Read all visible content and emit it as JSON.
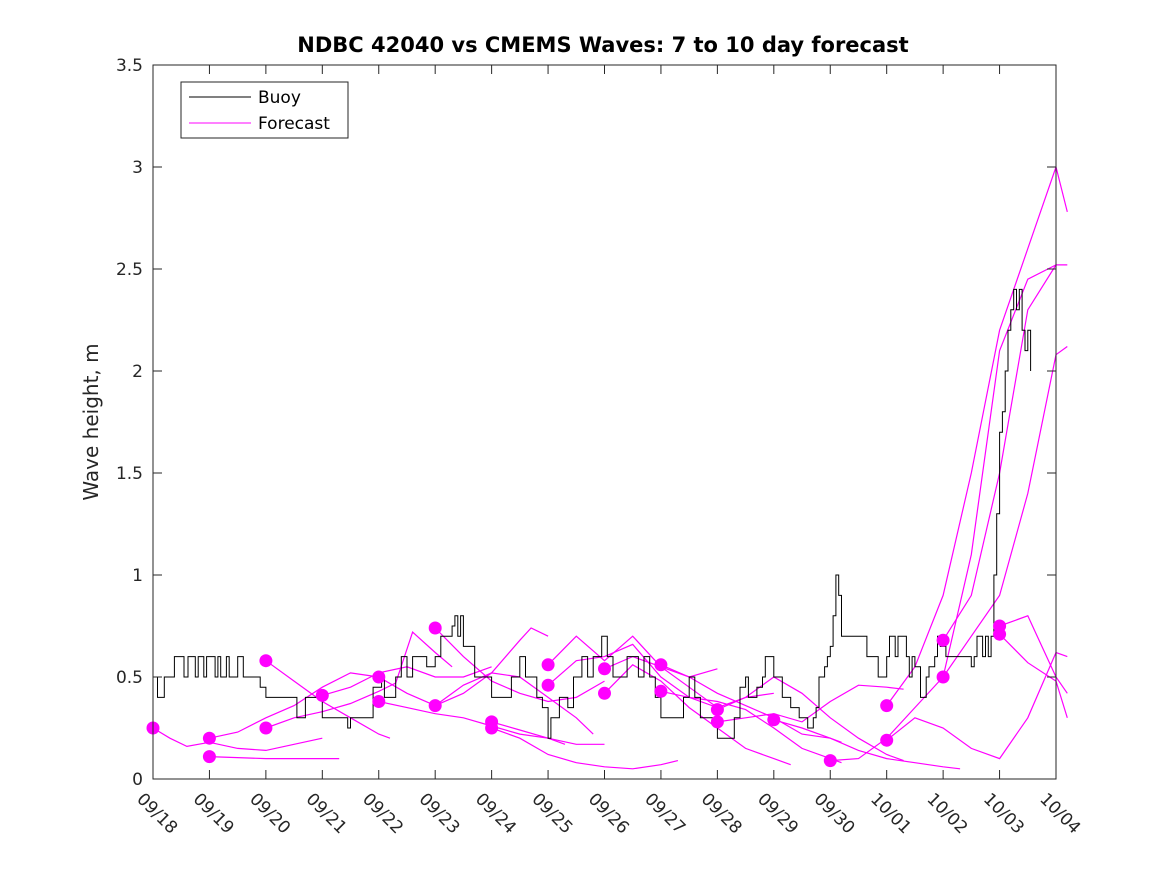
{
  "chart_data": {
    "type": "line",
    "title": "NDBC 42040 vs CMEMS Waves: 7 to 10 day forecast",
    "xlabel": "",
    "ylabel": "Wave height, m",
    "x_unit": "days since 09/18",
    "xlim": [
      0,
      16
    ],
    "ylim": [
      0,
      3.5
    ],
    "y_ticks": [
      0,
      0.5,
      1,
      1.5,
      2,
      2.5,
      3,
      3.5
    ],
    "y_tick_labels": [
      "0",
      "0.5",
      "1",
      "1.5",
      "2",
      "2.5",
      "3",
      "3.5"
    ],
    "x_ticks": [
      0,
      1,
      2,
      3,
      4,
      5,
      6,
      7,
      8,
      9,
      10,
      11,
      12,
      13,
      14,
      15,
      16
    ],
    "x_tick_labels": [
      "09/18",
      "09/19",
      "09/20",
      "09/21",
      "09/22",
      "09/23",
      "09/24",
      "09/25",
      "09/26",
      "09/27",
      "09/28",
      "09/29",
      "09/30",
      "10/01",
      "10/02",
      "10/03",
      "10/04"
    ],
    "grid": false,
    "legend": {
      "position": "top-left",
      "entries": [
        {
          "label": "Buoy",
          "color": "#000000"
        },
        {
          "label": "Forecast",
          "color": "#ff00ff"
        }
      ]
    },
    "colors": {
      "buoy": "#000000",
      "forecast": "#ff00ff",
      "axis": "#262626"
    },
    "buoy": [
      [
        0.0,
        0.5
      ],
      [
        0.08,
        0.4
      ],
      [
        0.2,
        0.5
      ],
      [
        0.3,
        0.5
      ],
      [
        0.38,
        0.6
      ],
      [
        0.5,
        0.6
      ],
      [
        0.55,
        0.5
      ],
      [
        0.62,
        0.6
      ],
      [
        0.75,
        0.5
      ],
      [
        0.8,
        0.6
      ],
      [
        0.9,
        0.5
      ],
      [
        0.95,
        0.6
      ],
      [
        1.05,
        0.6
      ],
      [
        1.1,
        0.5
      ],
      [
        1.15,
        0.6
      ],
      [
        1.2,
        0.5
      ],
      [
        1.3,
        0.6
      ],
      [
        1.35,
        0.5
      ],
      [
        1.5,
        0.6
      ],
      [
        1.6,
        0.5
      ],
      [
        1.85,
        0.5
      ],
      [
        1.9,
        0.45
      ],
      [
        2.0,
        0.4
      ],
      [
        2.3,
        0.4
      ],
      [
        2.55,
        0.3
      ],
      [
        2.7,
        0.4
      ],
      [
        3.0,
        0.3
      ],
      [
        3.35,
        0.3
      ],
      [
        3.45,
        0.25
      ],
      [
        3.5,
        0.3
      ],
      [
        3.8,
        0.3
      ],
      [
        3.9,
        0.45
      ],
      [
        4.05,
        0.5
      ],
      [
        4.1,
        0.4
      ],
      [
        4.3,
        0.5
      ],
      [
        4.4,
        0.6
      ],
      [
        4.5,
        0.5
      ],
      [
        4.6,
        0.6
      ],
      [
        4.75,
        0.6
      ],
      [
        4.85,
        0.55
      ],
      [
        5.0,
        0.6
      ],
      [
        5.1,
        0.7
      ],
      [
        5.2,
        0.7
      ],
      [
        5.3,
        0.75
      ],
      [
        5.35,
        0.8
      ],
      [
        5.4,
        0.7
      ],
      [
        5.45,
        0.8
      ],
      [
        5.5,
        0.65
      ],
      [
        5.7,
        0.5
      ],
      [
        5.85,
        0.5
      ],
      [
        6.0,
        0.4
      ],
      [
        6.2,
        0.4
      ],
      [
        6.35,
        0.5
      ],
      [
        6.5,
        0.6
      ],
      [
        6.6,
        0.5
      ],
      [
        6.8,
        0.4
      ],
      [
        6.9,
        0.35
      ],
      [
        7.0,
        0.2
      ],
      [
        7.05,
        0.3
      ],
      [
        7.2,
        0.4
      ],
      [
        7.35,
        0.35
      ],
      [
        7.45,
        0.5
      ],
      [
        7.6,
        0.6
      ],
      [
        7.7,
        0.5
      ],
      [
        7.8,
        0.6
      ],
      [
        7.95,
        0.7
      ],
      [
        8.05,
        0.6
      ],
      [
        8.15,
        0.5
      ],
      [
        8.3,
        0.5
      ],
      [
        8.4,
        0.6
      ],
      [
        8.5,
        0.6
      ],
      [
        8.6,
        0.5
      ],
      [
        8.7,
        0.6
      ],
      [
        8.8,
        0.5
      ],
      [
        8.9,
        0.4
      ],
      [
        9.0,
        0.3
      ],
      [
        9.2,
        0.3
      ],
      [
        9.4,
        0.4
      ],
      [
        9.5,
        0.5
      ],
      [
        9.6,
        0.4
      ],
      [
        9.7,
        0.3
      ],
      [
        9.85,
        0.3
      ],
      [
        10.0,
        0.2
      ],
      [
        10.15,
        0.2
      ],
      [
        10.3,
        0.3
      ],
      [
        10.4,
        0.45
      ],
      [
        10.5,
        0.5
      ],
      [
        10.55,
        0.4
      ],
      [
        10.7,
        0.45
      ],
      [
        10.8,
        0.5
      ],
      [
        10.85,
        0.6
      ],
      [
        11.0,
        0.5
      ],
      [
        11.15,
        0.4
      ],
      [
        11.3,
        0.35
      ],
      [
        11.45,
        0.3
      ],
      [
        11.6,
        0.25
      ],
      [
        11.7,
        0.3
      ],
      [
        11.75,
        0.35
      ],
      [
        11.8,
        0.5
      ],
      [
        11.9,
        0.55
      ],
      [
        11.95,
        0.6
      ],
      [
        12.0,
        0.65
      ],
      [
        12.05,
        0.8
      ],
      [
        12.1,
        1.0
      ],
      [
        12.15,
        0.9
      ],
      [
        12.2,
        0.7
      ],
      [
        12.3,
        0.7
      ],
      [
        12.5,
        0.7
      ],
      [
        12.65,
        0.6
      ],
      [
        12.75,
        0.6
      ],
      [
        12.85,
        0.5
      ],
      [
        12.95,
        0.5
      ],
      [
        13.0,
        0.6
      ],
      [
        13.05,
        0.7
      ],
      [
        13.15,
        0.6
      ],
      [
        13.2,
        0.7
      ],
      [
        13.3,
        0.7
      ],
      [
        13.35,
        0.6
      ],
      [
        13.4,
        0.5
      ],
      [
        13.45,
        0.6
      ],
      [
        13.5,
        0.55
      ],
      [
        13.6,
        0.4
      ],
      [
        13.7,
        0.5
      ],
      [
        13.75,
        0.55
      ],
      [
        13.85,
        0.6
      ],
      [
        13.9,
        0.7
      ],
      [
        13.95,
        0.65
      ],
      [
        14.05,
        0.6
      ],
      [
        14.2,
        0.6
      ],
      [
        14.3,
        0.6
      ],
      [
        14.4,
        0.6
      ],
      [
        14.5,
        0.55
      ],
      [
        14.55,
        0.6
      ],
      [
        14.6,
        0.7
      ],
      [
        14.65,
        0.7
      ],
      [
        14.7,
        0.6
      ],
      [
        14.75,
        0.7
      ],
      [
        14.8,
        0.6
      ],
      [
        14.85,
        0.7
      ],
      [
        14.9,
        1.0
      ],
      [
        14.95,
        1.3
      ],
      [
        15.0,
        1.7
      ],
      [
        15.05,
        1.8
      ],
      [
        15.1,
        2.0
      ],
      [
        15.15,
        2.2
      ],
      [
        15.2,
        2.3
      ],
      [
        15.25,
        2.4
      ],
      [
        15.3,
        2.3
      ],
      [
        15.35,
        2.4
      ],
      [
        15.4,
        2.2
      ],
      [
        15.45,
        2.1
      ],
      [
        15.5,
        2.2
      ],
      [
        15.55,
        2.0
      ]
    ],
    "forecast_series": [
      [
        [
          0.0,
          0.25
        ],
        [
          0.3,
          0.2
        ],
        [
          0.6,
          0.16
        ],
        [
          1.0,
          0.18
        ],
        [
          1.5,
          0.15
        ],
        [
          2.0,
          0.14
        ],
        [
          2.5,
          0.17
        ],
        [
          3.0,
          0.2
        ]
      ],
      [
        [
          1.0,
          0.2
        ],
        [
          1.5,
          0.23
        ],
        [
          2.0,
          0.3
        ],
        [
          2.5,
          0.36
        ],
        [
          3.0,
          0.45
        ],
        [
          3.5,
          0.52
        ],
        [
          4.0,
          0.5
        ]
      ],
      [
        [
          1.0,
          0.11
        ],
        [
          2.0,
          0.1
        ],
        [
          3.0,
          0.1
        ],
        [
          3.3,
          0.1
        ]
      ],
      [
        [
          2.0,
          0.58
        ],
        [
          2.5,
          0.48
        ],
        [
          3.0,
          0.38
        ],
        [
          3.5,
          0.3
        ],
        [
          4.0,
          0.22
        ],
        [
          4.2,
          0.2
        ]
      ],
      [
        [
          2.0,
          0.25
        ],
        [
          2.5,
          0.3
        ],
        [
          3.0,
          0.33
        ],
        [
          3.5,
          0.37
        ],
        [
          4.0,
          0.43
        ],
        [
          4.3,
          0.47
        ],
        [
          4.6,
          0.72
        ],
        [
          5.0,
          0.62
        ],
        [
          5.3,
          0.55
        ]
      ],
      [
        [
          3.0,
          0.41
        ],
        [
          3.5,
          0.45
        ],
        [
          4.0,
          0.52
        ],
        [
          4.5,
          0.55
        ],
        [
          5.0,
          0.5
        ],
        [
          5.5,
          0.5
        ],
        [
          6.0,
          0.55
        ]
      ],
      [
        [
          4.0,
          0.5
        ],
        [
          4.5,
          0.42
        ],
        [
          5.0,
          0.36
        ],
        [
          5.5,
          0.42
        ],
        [
          6.0,
          0.52
        ],
        [
          6.5,
          0.68
        ],
        [
          6.7,
          0.74
        ],
        [
          7.0,
          0.7
        ]
      ],
      [
        [
          4.0,
          0.38
        ],
        [
          4.5,
          0.35
        ],
        [
          5.0,
          0.32
        ],
        [
          5.5,
          0.3
        ],
        [
          6.0,
          0.26
        ],
        [
          6.5,
          0.22
        ],
        [
          7.0,
          0.2
        ],
        [
          7.3,
          0.17
        ]
      ],
      [
        [
          5.0,
          0.74
        ],
        [
          5.5,
          0.6
        ],
        [
          6.0,
          0.48
        ],
        [
          6.5,
          0.42
        ],
        [
          7.0,
          0.38
        ],
        [
          7.5,
          0.4
        ],
        [
          8.0,
          0.48
        ]
      ],
      [
        [
          5.0,
          0.36
        ],
        [
          5.5,
          0.46
        ],
        [
          6.0,
          0.52
        ],
        [
          6.5,
          0.5
        ],
        [
          7.0,
          0.4
        ],
        [
          7.5,
          0.3
        ],
        [
          7.8,
          0.22
        ]
      ],
      [
        [
          6.0,
          0.28
        ],
        [
          6.5,
          0.24
        ],
        [
          7.0,
          0.2
        ],
        [
          7.5,
          0.17
        ],
        [
          8.0,
          0.17
        ]
      ],
      [
        [
          6.0,
          0.25
        ],
        [
          6.5,
          0.2
        ],
        [
          7.0,
          0.12
        ],
        [
          7.5,
          0.08
        ],
        [
          8.0,
          0.06
        ],
        [
          8.5,
          0.05
        ],
        [
          9.0,
          0.07
        ],
        [
          9.3,
          0.09
        ]
      ],
      [
        [
          7.0,
          0.56
        ],
        [
          7.5,
          0.7
        ],
        [
          8.0,
          0.58
        ],
        [
          8.5,
          0.7
        ],
        [
          9.0,
          0.55
        ],
        [
          9.5,
          0.5
        ],
        [
          10.0,
          0.54
        ]
      ],
      [
        [
          7.0,
          0.46
        ],
        [
          7.5,
          0.58
        ],
        [
          8.0,
          0.6
        ],
        [
          8.5,
          0.66
        ],
        [
          9.0,
          0.5
        ],
        [
          9.5,
          0.4
        ],
        [
          10.0,
          0.35
        ]
      ],
      [
        [
          8.0,
          0.54
        ],
        [
          8.5,
          0.6
        ],
        [
          9.0,
          0.55
        ],
        [
          9.5,
          0.45
        ],
        [
          10.0,
          0.35
        ],
        [
          10.5,
          0.4
        ],
        [
          11.0,
          0.42
        ]
      ],
      [
        [
          8.0,
          0.42
        ],
        [
          8.5,
          0.56
        ],
        [
          9.0,
          0.48
        ],
        [
          9.5,
          0.35
        ],
        [
          10.0,
          0.25
        ],
        [
          10.5,
          0.15
        ],
        [
          11.0,
          0.1
        ],
        [
          11.3,
          0.07
        ]
      ],
      [
        [
          9.0,
          0.56
        ],
        [
          9.5,
          0.5
        ],
        [
          10.0,
          0.42
        ],
        [
          10.5,
          0.36
        ],
        [
          11.0,
          0.3
        ],
        [
          11.5,
          0.22
        ],
        [
          12.0,
          0.2
        ],
        [
          12.2,
          0.18
        ]
      ],
      [
        [
          9.0,
          0.43
        ],
        [
          9.5,
          0.4
        ],
        [
          10.0,
          0.38
        ],
        [
          10.5,
          0.34
        ],
        [
          11.0,
          0.25
        ],
        [
          11.5,
          0.15
        ],
        [
          12.0,
          0.1
        ],
        [
          12.2,
          0.08
        ]
      ],
      [
        [
          10.0,
          0.34
        ],
        [
          10.5,
          0.4
        ],
        [
          11.0,
          0.5
        ],
        [
          11.5,
          0.42
        ],
        [
          12.0,
          0.3
        ],
        [
          12.5,
          0.2
        ],
        [
          13.0,
          0.12
        ],
        [
          13.3,
          0.09
        ]
      ],
      [
        [
          10.0,
          0.28
        ],
        [
          10.5,
          0.3
        ],
        [
          11.0,
          0.32
        ],
        [
          11.5,
          0.28
        ],
        [
          12.0,
          0.38
        ],
        [
          12.5,
          0.46
        ],
        [
          13.0,
          0.45
        ],
        [
          13.3,
          0.44
        ]
      ],
      [
        [
          11.0,
          0.29
        ],
        [
          11.5,
          0.25
        ],
        [
          12.0,
          0.2
        ],
        [
          12.5,
          0.14
        ],
        [
          13.0,
          0.1
        ],
        [
          13.5,
          0.08
        ],
        [
          14.0,
          0.06
        ],
        [
          14.3,
          0.05
        ]
      ],
      [
        [
          12.0,
          0.09
        ],
        [
          12.5,
          0.1
        ],
        [
          13.0,
          0.2
        ],
        [
          13.5,
          0.35
        ],
        [
          14.0,
          0.5
        ],
        [
          14.5,
          1.1
        ],
        [
          15.0,
          2.1
        ],
        [
          15.5,
          2.45
        ],
        [
          16.0,
          2.52
        ]
      ],
      [
        [
          13.0,
          0.36
        ],
        [
          13.5,
          0.55
        ],
        [
          14.0,
          0.9
        ],
        [
          14.5,
          1.5
        ],
        [
          15.0,
          2.2
        ],
        [
          15.5,
          2.6
        ],
        [
          16.0,
          3.0
        ],
        [
          16.2,
          2.78
        ]
      ],
      [
        [
          13.0,
          0.19
        ],
        [
          13.5,
          0.3
        ],
        [
          14.0,
          0.25
        ],
        [
          14.5,
          0.15
        ],
        [
          15.0,
          0.1
        ],
        [
          15.5,
          0.3
        ],
        [
          16.0,
          0.62
        ],
        [
          16.2,
          0.6
        ]
      ],
      [
        [
          14.0,
          0.68
        ],
        [
          14.5,
          0.9
        ],
        [
          15.0,
          1.5
        ],
        [
          15.5,
          2.3
        ],
        [
          16.0,
          2.52
        ],
        [
          16.2,
          2.52
        ]
      ],
      [
        [
          14.0,
          0.5
        ],
        [
          14.5,
          0.7
        ],
        [
          15.0,
          0.9
        ],
        [
          15.5,
          1.4
        ],
        [
          16.0,
          2.08
        ],
        [
          16.2,
          2.12
        ]
      ],
      [
        [
          15.0,
          0.75
        ],
        [
          15.5,
          0.8
        ],
        [
          16.0,
          0.5
        ],
        [
          16.2,
          0.42
        ]
      ],
      [
        [
          15.0,
          0.71
        ],
        [
          15.5,
          0.57
        ],
        [
          16.0,
          0.48
        ],
        [
          16.2,
          0.3
        ]
      ]
    ],
    "markers": [
      [
        0.0,
        0.25
      ],
      [
        1.0,
        0.2
      ],
      [
        1.0,
        0.11
      ],
      [
        2.0,
        0.58
      ],
      [
        2.0,
        0.25
      ],
      [
        3.0,
        0.41
      ],
      [
        4.0,
        0.5
      ],
      [
        4.0,
        0.38
      ],
      [
        5.0,
        0.74
      ],
      [
        5.0,
        0.36
      ],
      [
        6.0,
        0.28
      ],
      [
        6.0,
        0.25
      ],
      [
        7.0,
        0.56
      ],
      [
        7.0,
        0.46
      ],
      [
        8.0,
        0.54
      ],
      [
        8.0,
        0.42
      ],
      [
        9.0,
        0.56
      ],
      [
        9.0,
        0.43
      ],
      [
        10.0,
        0.34
      ],
      [
        10.0,
        0.28
      ],
      [
        11.0,
        0.29
      ],
      [
        12.0,
        0.09
      ],
      [
        13.0,
        0.36
      ],
      [
        13.0,
        0.19
      ],
      [
        14.0,
        0.68
      ],
      [
        14.0,
        0.5
      ],
      [
        15.0,
        0.75
      ],
      [
        15.0,
        0.71
      ]
    ]
  }
}
